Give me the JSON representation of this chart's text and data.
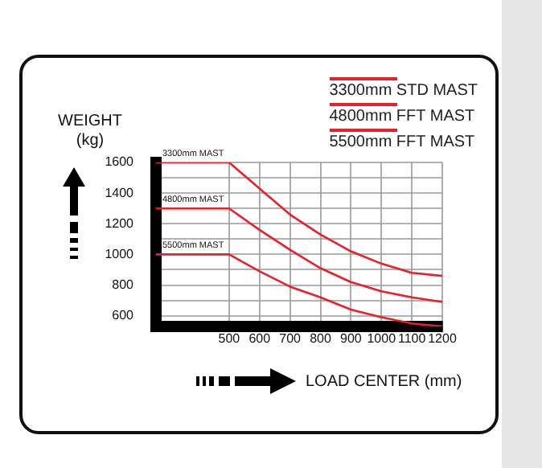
{
  "chart_data": {
    "type": "line",
    "xlabel": "LOAD CENTER (mm)",
    "ylabel": "WEIGHT\n(kg)",
    "x": [
      260,
      500,
      600,
      700,
      800,
      900,
      1000,
      1100,
      1200
    ],
    "series": [
      {
        "name": "3300mm STD MAST",
        "color": "#e8202a",
        "values": [
          1600,
          1600,
          1430,
          1260,
          1130,
          1020,
          940,
          880,
          860
        ]
      },
      {
        "name": "4800mm FFT MAST",
        "color": "#e8202a",
        "values": [
          1300,
          1300,
          1160,
          1030,
          910,
          820,
          760,
          720,
          690
        ]
      },
      {
        "name": "5500mm FFT MAST",
        "color": "#e8202a",
        "values": [
          1000,
          1000,
          890,
          790,
          720,
          640,
          590,
          550,
          530
        ]
      }
    ],
    "xlim": [
      260,
      1200
    ],
    "xticks": [
      500,
      600,
      700,
      800,
      900,
      1000,
      1100,
      1200
    ],
    "ylim": [
      530,
      1600
    ],
    "yticks": [
      600,
      {
        "value": 700,
        "label": null
      },
      800,
      {
        "value": 900,
        "label": null
      },
      1000,
      {
        "value": 1100,
        "label": null
      },
      1200,
      {
        "value": 1300,
        "label": null
      },
      1400,
      {
        "value": 1500,
        "label": null
      },
      1600
    ],
    "annotations": [
      {
        "text": "3300mm MAST",
        "y": 1600
      },
      {
        "text": "4800mm MAST",
        "y": 1300
      },
      {
        "text": "5500mm MAST",
        "y": 1000
      }
    ],
    "grid": true,
    "legend": "top right",
    "marker": "none",
    "line_style": "solid"
  }
}
